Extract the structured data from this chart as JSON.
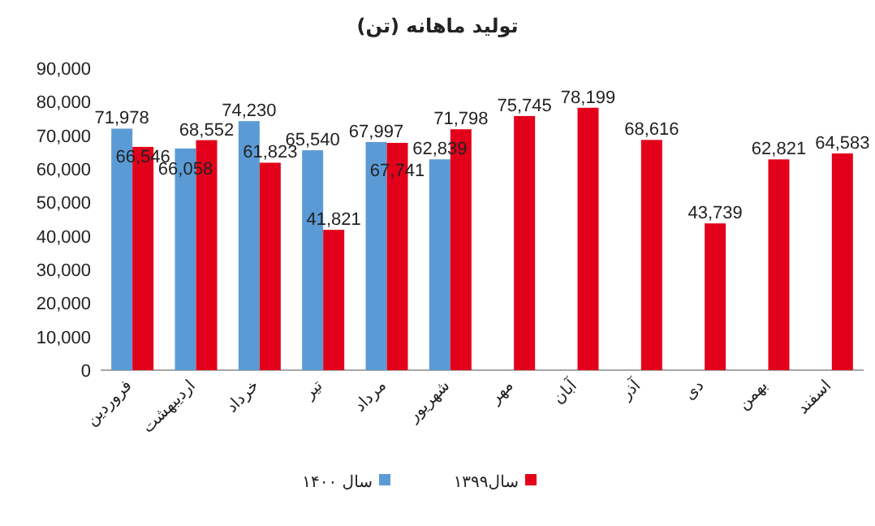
{
  "chart_data": {
    "type": "bar",
    "title": "تولید ماهانه (تن)",
    "categories": [
      "فروردین",
      "اردیبهشت",
      "خرداد",
      "تیر",
      "مرداد",
      "شهریور",
      "مهر",
      "آبان",
      "آذر",
      "دی",
      "بهمن",
      "اسفند"
    ],
    "series": [
      {
        "name": "سال ۱۴۰۰",
        "color": "#5b9bd5",
        "values": [
          71978,
          66058,
          74230,
          65540,
          67997,
          62839,
          null,
          null,
          null,
          null,
          null,
          null
        ],
        "value_labels": [
          "71,978",
          "66,058",
          "74,230",
          "65,540",
          "67,997",
          "62,839",
          null,
          null,
          null,
          null,
          null,
          null
        ]
      },
      {
        "name": "سال۱۳۹۹",
        "color": "#e3001b",
        "values": [
          66546,
          68552,
          61823,
          41821,
          67741,
          71798,
          75745,
          78199,
          68616,
          43739,
          62821,
          64583
        ],
        "value_labels": [
          "66,546",
          "68,552",
          "61,823",
          "41,821",
          "67,741",
          "71,798",
          "75,745",
          "78,199",
          "68,616",
          "43,739",
          "62,821",
          "64,583"
        ]
      }
    ],
    "ylim": [
      0,
      90000
    ],
    "yticks": [
      {
        "value": 0,
        "label": "0"
      },
      {
        "value": 10000,
        "label": "10,000"
      },
      {
        "value": 20000,
        "label": "20,000"
      },
      {
        "value": 30000,
        "label": "30,000"
      },
      {
        "value": 40000,
        "label": "40,000"
      },
      {
        "value": 50000,
        "label": "50,000"
      },
      {
        "value": 60000,
        "label": "60,000"
      },
      {
        "value": 70000,
        "label": "70,000"
      },
      {
        "value": 80000,
        "label": "80,000"
      },
      {
        "value": 90000,
        "label": "90,000"
      }
    ],
    "legend": "bottom"
  }
}
